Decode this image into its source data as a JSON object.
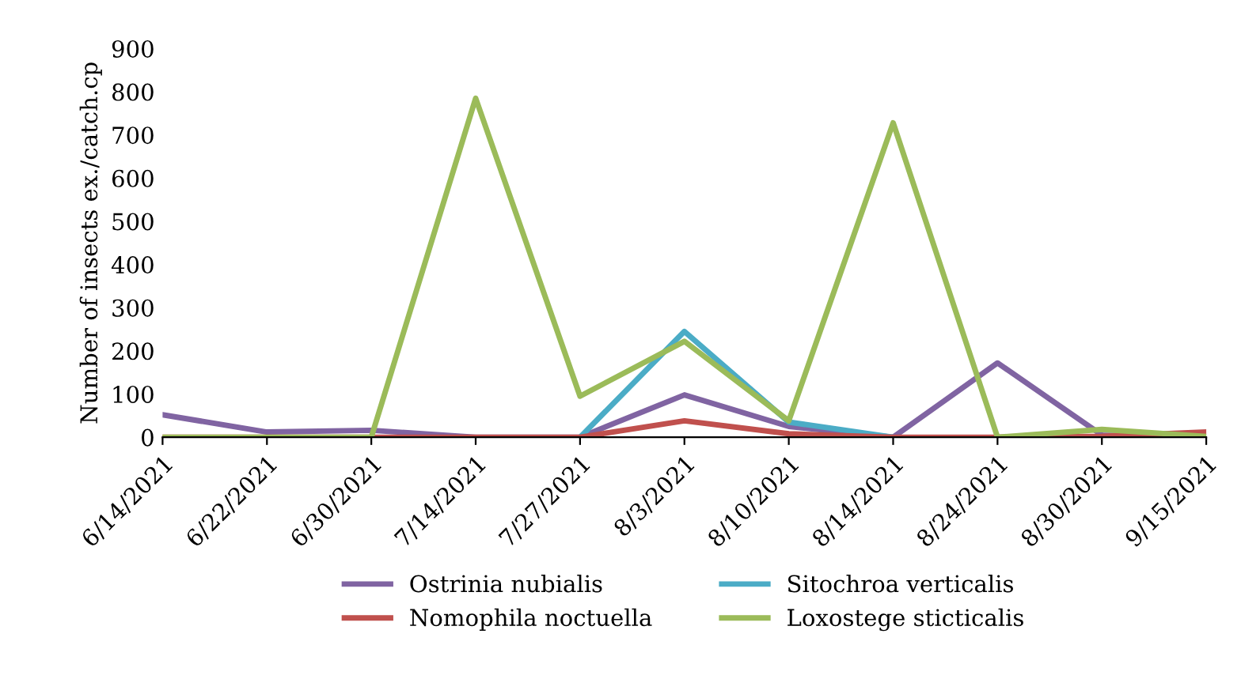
{
  "chart_data": {
    "type": "line",
    "ylabel": "Number of insects ex./catch.cp",
    "categories": [
      "6/14/2021",
      "6/22/2021",
      "6/30/2021",
      "7/14/2021",
      "7/27/2021",
      "8/3/2021",
      "8/10/2021",
      "8/14/2021",
      "8/24/2021",
      "8/30/2021",
      "9/15/2021"
    ],
    "series": [
      {
        "name": "Ostrinia nubialis",
        "color": "#8064a2",
        "values": [
          52,
          12,
          16,
          0,
          0,
          98,
          25,
          0,
          172,
          5,
          0
        ]
      },
      {
        "name": "Sitochroa verticalis",
        "color": "#4bacc6",
        "values": [
          null,
          null,
          null,
          null,
          0,
          245,
          35,
          0,
          null,
          null,
          null
        ]
      },
      {
        "name": "Nomophila noctuella",
        "color": "#c0504d",
        "values": [
          0,
          0,
          0,
          0,
          0,
          38,
          8,
          0,
          0,
          2,
          12
        ]
      },
      {
        "name": "Loxostege sticticalis",
        "color": "#9bbb59",
        "values": [
          0,
          0,
          0,
          785,
          95,
          222,
          38,
          728,
          0,
          18,
          2
        ]
      }
    ],
    "ylim": [
      0,
      900
    ],
    "yticks": [
      0,
      100,
      200,
      300,
      400,
      500,
      600,
      700,
      800,
      900
    ],
    "grid": false,
    "legend": "bottom",
    "marker": "none",
    "line_style": "solid"
  }
}
